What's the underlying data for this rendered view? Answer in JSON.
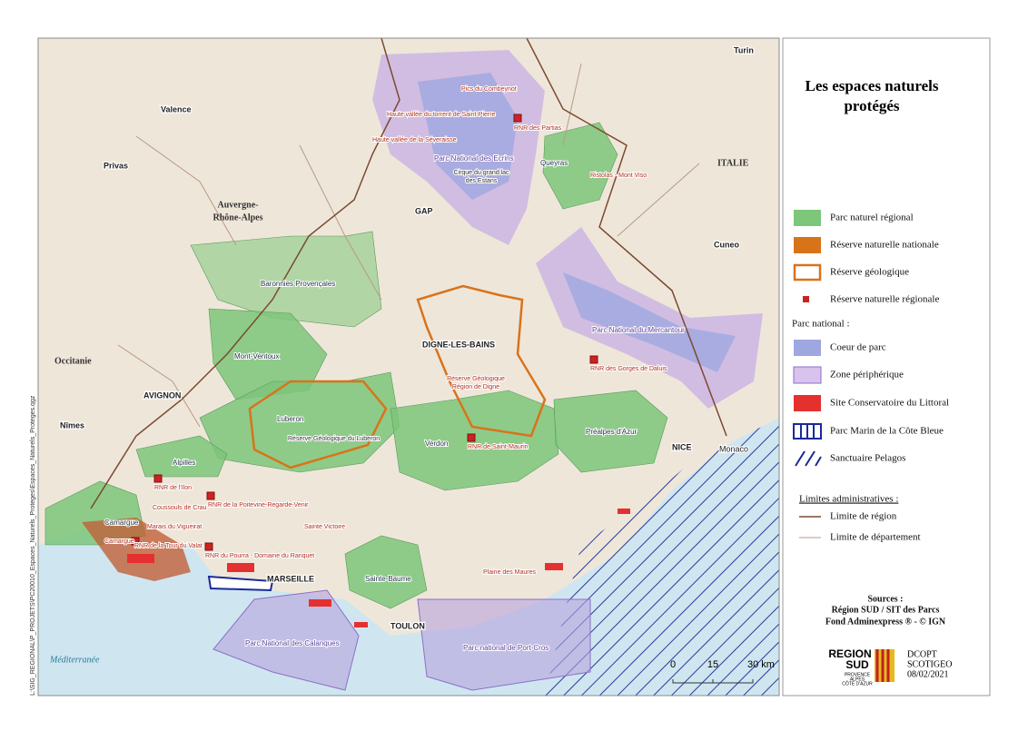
{
  "legend": {
    "title": [
      "Les espaces naturels",
      "protégés"
    ],
    "items": [
      "Parc naturel régional",
      "Réserve naturelle nationale",
      "Réserve géologique",
      "Réserve naturelle régionale"
    ],
    "national_heading": "Parc national :",
    "national_items": [
      "Coeur de parc",
      "Zone périphérique",
      "Site Conservatoire du Littoral",
      "Parc Marin de la Côte Bleue",
      "Sanctuaire Pelagos"
    ],
    "admin_heading": "Limites administratives :",
    "admin_items": [
      "Limite de région",
      "Limite de département"
    ]
  },
  "sources": [
    "Sources :",
    "Région SUD / SIT des Parcs",
    "Fond Adminexpress ® - © IGN"
  ],
  "credits": {
    "logo": [
      "REGION",
      "SUD"
    ],
    "logo_sub": [
      "PROVENCE",
      "ALPES",
      "CÔTE D'AZUR"
    ],
    "author": [
      "DCOPT",
      "SCOTIGEO"
    ],
    "date": "08/02/2021"
  },
  "scale": [
    "0",
    "15",
    "30 km"
  ],
  "file_path": "L:\\SIG_REGIONAL\\P_PROJETS\\PC20010_Espaces_Naturels_Proteges\\Espaces_Naturels_Proteges.qgz",
  "cities": [
    "Turin",
    "Valence",
    "Privas",
    "GAP",
    "Cuneo",
    "DIGNE-LES-BAINS",
    "AVIGNON",
    "Nîmes",
    "NICE",
    "Monaco",
    "MARSEILLE",
    "TOULON"
  ],
  "regions": {
    "italy": "ITALIE",
    "auvergne": [
      "Auvergne-",
      "Rhône-Alpes"
    ],
    "occitanie": "Occitanie",
    "sea": "Méditerranée"
  },
  "parks": [
    "Queyras",
    "Baronnies Provençales",
    "Mont-Ventoux",
    "Luberon",
    "Alpilles",
    "Camargue",
    "Verdon",
    "Préalpes d'Azur",
    "Sainte-Baume"
  ],
  "national_parks": [
    "Parc National des Ecrins",
    "Parc National du Mercantour",
    "Parc National des Calanques",
    "Parc national de Port-Cros"
  ],
  "reserves": [
    "Pics du Combeynot",
    "Haute vallée du torrent de Saint-Pierre",
    "Haute vallée de la Séveraisse",
    "RNR des Partias",
    "Ristolas - Mont Viso",
    "RNR des Gorges de Daluis",
    "RNR de Saint-Maurin",
    "Réserve Géologique du Luberon",
    "RNR de l'Ilon",
    "Coussouls de Crau",
    "RNR de la Poitevine-Regarde-Venir",
    "Marais du Vigueirat",
    "Sainte Victoire",
    "Camargue",
    "RNR de la Tour du Valat",
    "RNR du Pourra - Domaine du Ranquet",
    "Plaine des Maures"
  ],
  "multiline_reserves": {
    "estans": [
      "Cirque du grand lac",
      "des Estans"
    ],
    "digne": [
      "Réserve Géologique",
      "Région de Digne"
    ]
  }
}
